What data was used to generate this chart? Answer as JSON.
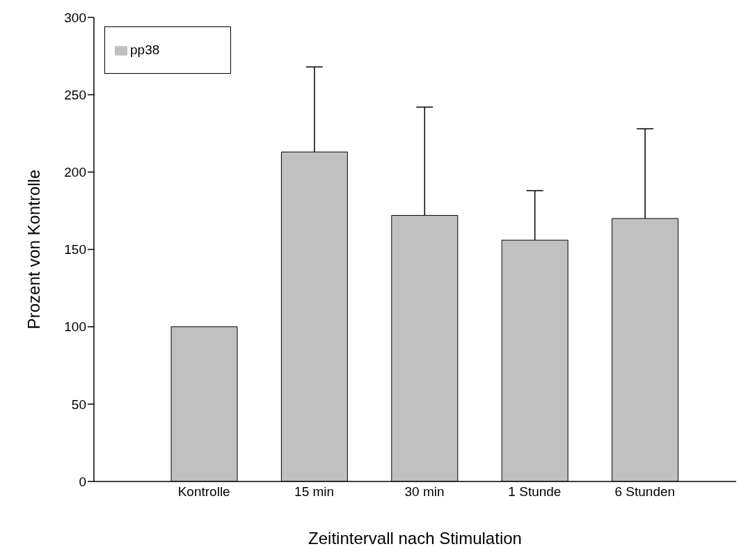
{
  "chart_data": {
    "type": "bar",
    "xlabel": "Zeitintervall nach Stimulation",
    "ylabel": "Prozent von Kontrolle",
    "categories": [
      "Kontrolle",
      "15 min",
      "30 min",
      "1 Stunde",
      "6 Stunden"
    ],
    "series": [
      {
        "name": "pp38",
        "color": "#c0c0c0",
        "values": [
          100,
          213,
          172,
          156,
          170
        ],
        "errors": [
          null,
          [
            213,
            268
          ],
          [
            172,
            242
          ],
          [
            156,
            188
          ],
          [
            170,
            228
          ]
        ]
      }
    ],
    "ylim": [
      0,
      300
    ],
    "yticks": [
      0,
      50,
      100,
      150,
      200,
      250,
      300
    ],
    "grid": false,
    "legend": "top left"
  }
}
